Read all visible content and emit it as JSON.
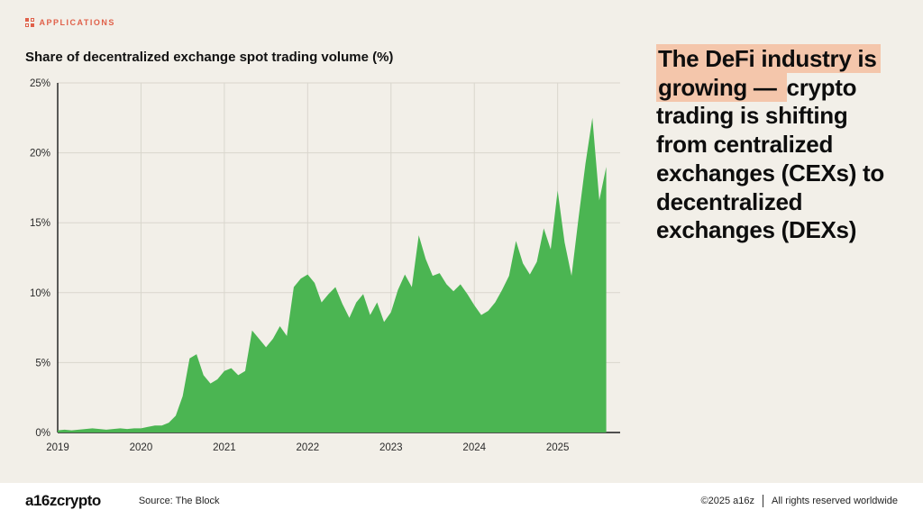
{
  "page": {
    "eyebrow": "APPLICATIONS"
  },
  "chart": {
    "title": "Share of decentralized exchange spot trading volume (%)"
  },
  "chart_data": {
    "type": "area",
    "title": "Share of decentralized exchange spot trading volume (%)",
    "x_start_year": 2019,
    "x_step_months": 1,
    "xlim": [
      2019,
      2025.75
    ],
    "ylim": [
      0,
      25
    ],
    "x_tick_labels": [
      "2019",
      "2020",
      "2021",
      "2022",
      "2023",
      "2024",
      "2025"
    ],
    "y_tick_labels": [
      "0%",
      "5%",
      "10%",
      "15%",
      "20%",
      "25%"
    ],
    "grid": true,
    "legend": "none",
    "area_color": "#4bb552",
    "axis_color": "#1a1a1a",
    "grid_color": "#d9d6cd",
    "values": [
      0.15,
      0.2,
      0.15,
      0.2,
      0.25,
      0.3,
      0.25,
      0.2,
      0.25,
      0.3,
      0.25,
      0.3,
      0.3,
      0.4,
      0.5,
      0.5,
      0.7,
      1.2,
      2.6,
      5.3,
      5.6,
      4.1,
      3.5,
      3.8,
      4.4,
      4.6,
      4.1,
      4.4,
      7.3,
      6.7,
      6.1,
      6.7,
      7.6,
      6.9,
      10.4,
      11.0,
      11.3,
      10.7,
      9.3,
      9.9,
      10.4,
      9.2,
      8.2,
      9.3,
      9.9,
      8.4,
      9.3,
      7.9,
      8.6,
      10.2,
      11.3,
      10.4,
      14.1,
      12.4,
      11.2,
      11.4,
      10.6,
      10.1,
      10.6,
      9.9,
      9.1,
      8.4,
      8.7,
      9.3,
      10.2,
      11.2,
      13.7,
      12.1,
      11.3,
      12.2,
      14.6,
      13.1,
      17.3,
      13.6,
      11.2,
      15.3,
      19.2,
      22.5,
      16.6,
      19.0
    ]
  },
  "headline": {
    "highlight": "The DeFi industry is growing — ",
    "rest": "crypto trading is shifting from centralized exchanges (CEXs) to decentralized exchanges (DEXs)"
  },
  "footer": {
    "logo": "a16zcrypto",
    "source": "Source: The Block",
    "copyright": "©2025 a16z",
    "rights": "All rights reserved worldwide"
  }
}
